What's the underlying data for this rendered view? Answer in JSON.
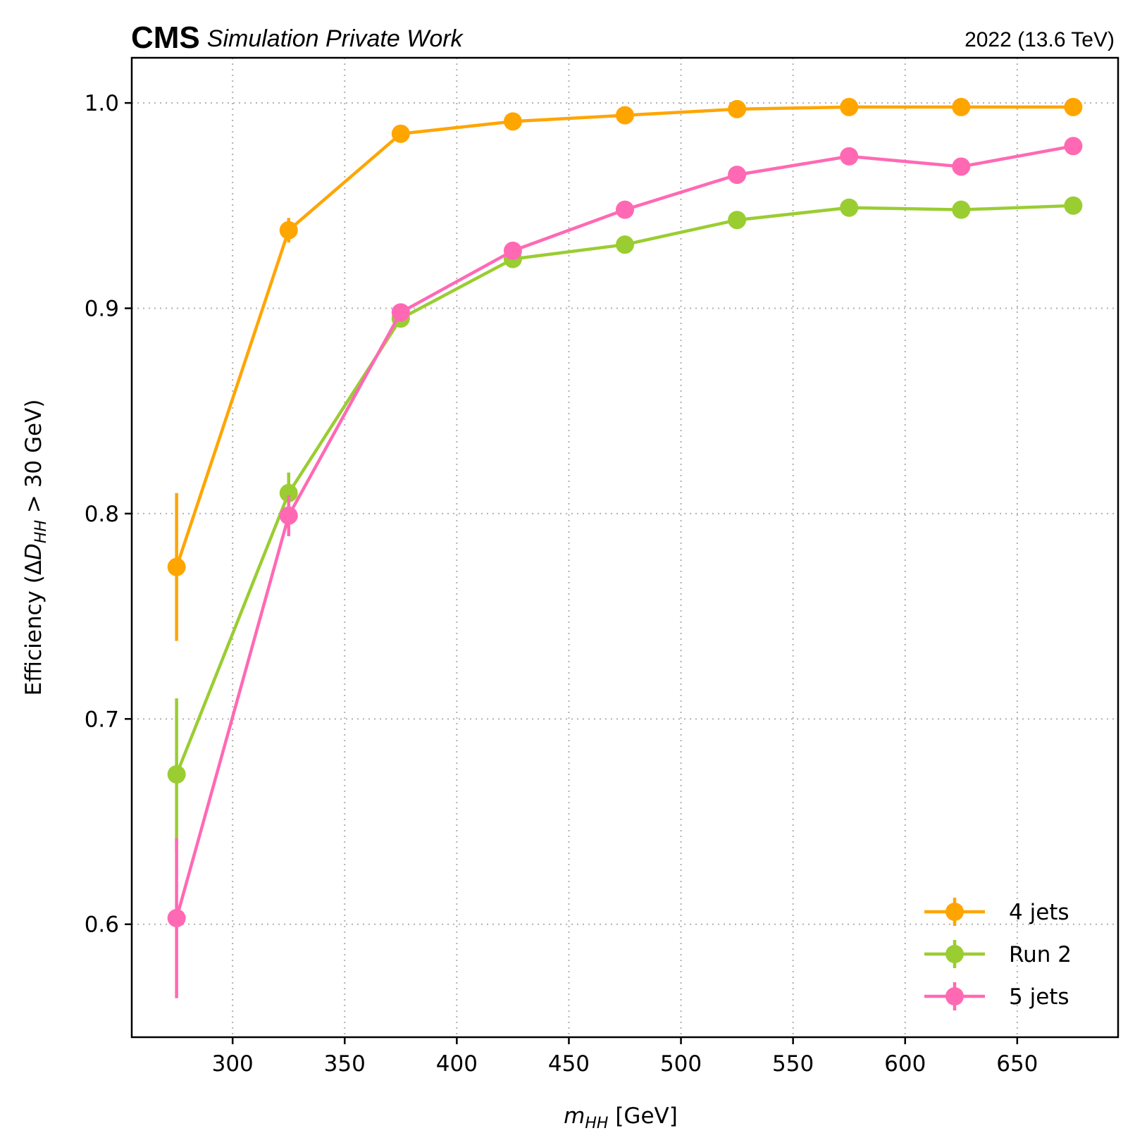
{
  "header": {
    "experiment": "CMS",
    "subtitle": "Simulation Private Work",
    "lumi": "2022 (13.6 TeV)"
  },
  "chart_data": {
    "type": "line",
    "title": "",
    "xlabel": "m_HH [GeV]",
    "ylabel": "Efficiency (ΔD_HH > 30 GeV)",
    "xlim": [
      255,
      695
    ],
    "ylim": [
      0.545,
      1.022
    ],
    "x_ticks": [
      300,
      350,
      400,
      450,
      500,
      550,
      600,
      650
    ],
    "x_tick_labels": [
      "300",
      "350",
      "400",
      "450",
      "500",
      "550",
      "600",
      "650"
    ],
    "y_ticks": [
      0.6,
      0.7,
      0.8,
      0.9,
      1.0
    ],
    "y_tick_labels": [
      "0.6",
      "0.7",
      "0.8",
      "0.9",
      "1.0"
    ],
    "grid": true,
    "legend_position": "bottom-right",
    "x": [
      275,
      325,
      375,
      425,
      475,
      525,
      575,
      625,
      675
    ],
    "series": [
      {
        "name": "4 jets",
        "color": "#ffa500",
        "values": [
          0.774,
          0.938,
          0.985,
          0.991,
          0.994,
          0.997,
          0.998,
          0.998,
          0.998
        ],
        "errors": [
          0.036,
          0.006,
          0.002,
          0.001,
          0.001,
          0.001,
          0.001,
          0.001,
          0.001
        ]
      },
      {
        "name": "Run 2",
        "color": "#9acd32",
        "values": [
          0.673,
          0.81,
          0.895,
          0.924,
          0.931,
          0.943,
          0.949,
          0.948,
          0.95
        ],
        "errors": [
          0.037,
          0.01,
          0.003,
          0.002,
          0.002,
          0.002,
          0.002,
          0.002,
          0.002
        ]
      },
      {
        "name": "5 jets",
        "color": "#ff69b4",
        "values": [
          0.603,
          0.799,
          0.898,
          0.928,
          0.948,
          0.965,
          0.974,
          0.969,
          0.979
        ],
        "errors": [
          0.039,
          0.01,
          0.003,
          0.002,
          0.002,
          0.002,
          0.002,
          0.002,
          0.002
        ]
      }
    ]
  }
}
